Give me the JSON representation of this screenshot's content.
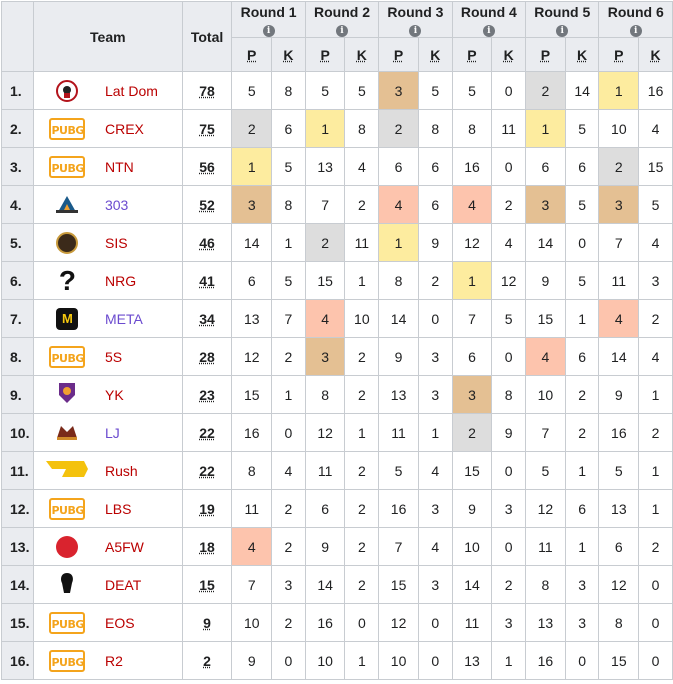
{
  "header": {
    "team": "Team",
    "total": "Total",
    "rounds": [
      "Round 1",
      "Round 2",
      "Round 3",
      "Round 4",
      "Round 5",
      "Round 6"
    ],
    "p": "P",
    "k": "K",
    "info_glyph": "i"
  },
  "colors": {
    "gold": "#fdec9f",
    "silver": "#dddddd",
    "bronze": "#e4c093",
    "fourth": "#fdc4ad",
    "link_red": "#ba0000",
    "link_purple": "#6b4bcf"
  },
  "rows": [
    {
      "rank": "1.",
      "logo": "lat-dom-logo",
      "name": "Lat Dom",
      "total": "78",
      "r": [
        [
          "5",
          "8"
        ],
        [
          "5",
          "5"
        ],
        [
          "3",
          "5"
        ],
        [
          "5",
          "0"
        ],
        [
          "2",
          "14"
        ],
        [
          "1",
          "16"
        ]
      ]
    },
    {
      "rank": "2.",
      "logo": "pubg-logo",
      "name": "CREX",
      "total": "75",
      "r": [
        [
          "2",
          "6"
        ],
        [
          "1",
          "8"
        ],
        [
          "2",
          "8"
        ],
        [
          "8",
          "11"
        ],
        [
          "1",
          "5"
        ],
        [
          "10",
          "4"
        ]
      ]
    },
    {
      "rank": "3.",
      "logo": "pubg-logo",
      "name": "NTN",
      "total": "56",
      "r": [
        [
          "1",
          "5"
        ],
        [
          "13",
          "4"
        ],
        [
          "6",
          "6"
        ],
        [
          "16",
          "0"
        ],
        [
          "6",
          "6"
        ],
        [
          "2",
          "15"
        ]
      ]
    },
    {
      "rank": "4.",
      "logo": "303-logo",
      "name": "303",
      "total": "52",
      "r": [
        [
          "3",
          "8"
        ],
        [
          "7",
          "2"
        ],
        [
          "4",
          "6"
        ],
        [
          "4",
          "2"
        ],
        [
          "3",
          "5"
        ],
        [
          "3",
          "5"
        ]
      ]
    },
    {
      "rank": "5.",
      "logo": "sis-logo",
      "name": "SIS",
      "total": "46",
      "r": [
        [
          "14",
          "1"
        ],
        [
          "2",
          "11"
        ],
        [
          "1",
          "9"
        ],
        [
          "12",
          "4"
        ],
        [
          "14",
          "0"
        ],
        [
          "7",
          "4"
        ]
      ]
    },
    {
      "rank": "6.",
      "logo": "question-mark-icon",
      "name": "NRG",
      "total": "41",
      "r": [
        [
          "6",
          "5"
        ],
        [
          "15",
          "1"
        ],
        [
          "8",
          "2"
        ],
        [
          "1",
          "12"
        ],
        [
          "9",
          "5"
        ],
        [
          "11",
          "3"
        ]
      ]
    },
    {
      "rank": "7.",
      "logo": "meta-logo",
      "name": "META",
      "total": "34",
      "r": [
        [
          "13",
          "7"
        ],
        [
          "4",
          "10"
        ],
        [
          "14",
          "0"
        ],
        [
          "7",
          "5"
        ],
        [
          "15",
          "1"
        ],
        [
          "4",
          "2"
        ]
      ]
    },
    {
      "rank": "8.",
      "logo": "pubg-logo",
      "name": "5S",
      "total": "28",
      "r": [
        [
          "12",
          "2"
        ],
        [
          "3",
          "2"
        ],
        [
          "9",
          "3"
        ],
        [
          "6",
          "0"
        ],
        [
          "4",
          "6"
        ],
        [
          "14",
          "4"
        ]
      ]
    },
    {
      "rank": "9.",
      "logo": "yk-logo",
      "name": "YK",
      "total": "23",
      "r": [
        [
          "15",
          "1"
        ],
        [
          "8",
          "2"
        ],
        [
          "13",
          "3"
        ],
        [
          "3",
          "8"
        ],
        [
          "10",
          "2"
        ],
        [
          "9",
          "1"
        ]
      ]
    },
    {
      "rank": "10.",
      "logo": "lj-logo",
      "name": "LJ",
      "total": "22",
      "r": [
        [
          "16",
          "0"
        ],
        [
          "12",
          "1"
        ],
        [
          "11",
          "1"
        ],
        [
          "2",
          "9"
        ],
        [
          "7",
          "2"
        ],
        [
          "16",
          "2"
        ]
      ]
    },
    {
      "rank": "11.",
      "logo": "rush-logo",
      "name": "Rush",
      "total": "22",
      "r": [
        [
          "8",
          "4"
        ],
        [
          "11",
          "2"
        ],
        [
          "5",
          "4"
        ],
        [
          "15",
          "0"
        ],
        [
          "5",
          "1"
        ],
        [
          "5",
          "1"
        ]
      ]
    },
    {
      "rank": "12.",
      "logo": "pubg-logo",
      "name": "LBS",
      "total": "19",
      "r": [
        [
          "11",
          "2"
        ],
        [
          "6",
          "2"
        ],
        [
          "16",
          "3"
        ],
        [
          "9",
          "3"
        ],
        [
          "12",
          "6"
        ],
        [
          "13",
          "1"
        ]
      ]
    },
    {
      "rank": "13.",
      "logo": "a5fw-logo",
      "name": "A5FW",
      "total": "18",
      "r": [
        [
          "4",
          "2"
        ],
        [
          "9",
          "2"
        ],
        [
          "7",
          "4"
        ],
        [
          "10",
          "0"
        ],
        [
          "11",
          "1"
        ],
        [
          "6",
          "2"
        ]
      ]
    },
    {
      "rank": "14.",
      "logo": "deat-logo",
      "name": "DEAT",
      "total": "15",
      "r": [
        [
          "7",
          "3"
        ],
        [
          "14",
          "2"
        ],
        [
          "15",
          "3"
        ],
        [
          "14",
          "2"
        ],
        [
          "8",
          "3"
        ],
        [
          "12",
          "0"
        ]
      ]
    },
    {
      "rank": "15.",
      "logo": "pubg-logo",
      "name": "EOS",
      "total": "9",
      "r": [
        [
          "10",
          "2"
        ],
        [
          "16",
          "0"
        ],
        [
          "12",
          "0"
        ],
        [
          "11",
          "3"
        ],
        [
          "13",
          "3"
        ],
        [
          "8",
          "0"
        ]
      ]
    },
    {
      "rank": "16.",
      "logo": "pubg-logo",
      "name": "R2",
      "total": "2",
      "r": [
        [
          "9",
          "0"
        ],
        [
          "10",
          "1"
        ],
        [
          "10",
          "0"
        ],
        [
          "13",
          "1"
        ],
        [
          "16",
          "0"
        ],
        [
          "15",
          "0"
        ]
      ]
    }
  ],
  "logo_text": {
    "pubg": "PUBG",
    "question": "?",
    "meta": "M"
  }
}
